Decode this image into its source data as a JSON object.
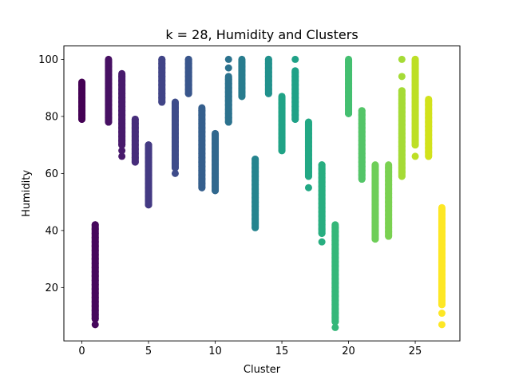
{
  "chart_data": {
    "type": "scatter",
    "title": "k = 28, Humidity and Clusters",
    "xlabel": "Cluster",
    "ylabel": "Humidity",
    "xlim": [
      -1.35,
      28.35
    ],
    "ylim": [
      1.3,
      104.7
    ],
    "xticks": [
      0,
      5,
      10,
      15,
      20,
      25
    ],
    "yticks": [
      20,
      40,
      60,
      80,
      100
    ],
    "grid": false,
    "legend": "none",
    "colormap": "viridis",
    "series": [
      {
        "x": 0,
        "y_min": 79,
        "y_max": 92,
        "outliers": [],
        "color": "#440154"
      },
      {
        "x": 1,
        "y_min": 9,
        "y_max": 42,
        "outliers": [
          7
        ],
        "color": "#46085c"
      },
      {
        "x": 2,
        "y_min": 78,
        "y_max": 100,
        "outliers": [],
        "color": "#471063"
      },
      {
        "x": 3,
        "y_min": 70,
        "y_max": 95,
        "outliers": [
          66,
          68
        ],
        "color": "#481a6c"
      },
      {
        "x": 4,
        "y_min": 64,
        "y_max": 79,
        "outliers": [],
        "color": "#482273"
      },
      {
        "x": 5,
        "y_min": 49,
        "y_max": 70,
        "outliers": [],
        "color": "#472c7a"
      },
      {
        "x": 6,
        "y_min": 85,
        "y_max": 100,
        "outliers": [],
        "color": "#46337f"
      },
      {
        "x": 7,
        "y_min": 62,
        "y_max": 85,
        "outliers": [
          60
        ],
        "color": "#433d84"
      },
      {
        "x": 8,
        "y_min": 88,
        "y_max": 100,
        "outliers": [],
        "color": "#414487"
      },
      {
        "x": 9,
        "y_min": 55,
        "y_max": 83,
        "outliers": [],
        "color": "#3e4c8a"
      },
      {
        "x": 10,
        "y_min": 54,
        "y_max": 74,
        "outliers": [],
        "color": "#3b528b"
      },
      {
        "x": 11,
        "y_min": 78,
        "y_max": 94,
        "outliers": [
          97,
          100
        ],
        "color": "#375b8d"
      },
      {
        "x": 12,
        "y_min": 87,
        "y_max": 100,
        "outliers": [],
        "color": "#34618d"
      },
      {
        "x": 13,
        "y_min": 41,
        "y_max": 65,
        "outliers": [],
        "color": "#30698e"
      },
      {
        "x": 14,
        "y_min": 88,
        "y_max": 100,
        "outliers": [],
        "color": "#2d708e"
      },
      {
        "x": 15,
        "y_min": 68,
        "y_max": 87,
        "outliers": [],
        "color": "#2a788e"
      },
      {
        "x": 16,
        "y_min": 79,
        "y_max": 96,
        "outliers": [
          100
        ],
        "color": "#287d8e"
      },
      {
        "x": 17,
        "y_min": 59,
        "y_max": 78,
        "outliers": [
          55
        ],
        "color": "#25848e"
      },
      {
        "x": 18,
        "y_min": 39,
        "y_max": 63,
        "outliers": [
          36
        ],
        "color": "#228b8d"
      },
      {
        "x": 19,
        "y_min": 8,
        "y_max": 42,
        "outliers": [
          6
        ],
        "color": "#20928c"
      },
      {
        "x": 20,
        "y_min": 81,
        "y_max": 100,
        "outliers": [],
        "color": "#1f988b"
      },
      {
        "x": 21,
        "y_min": 58,
        "y_max": 82,
        "outliers": [],
        "color": "#1fa088"
      },
      {
        "x": 22,
        "y_min": 37,
        "y_max": 63,
        "outliers": [],
        "color": "#22a785"
      },
      {
        "x": 23,
        "y_min": 38,
        "y_max": 63,
        "outliers": [],
        "color": "#28ae80"
      },
      {
        "x": 24,
        "y_min": 59,
        "y_max": 89,
        "outliers": [
          94,
          100
        ],
        "color": "#2fb47c"
      },
      {
        "x": 25,
        "y_min": 70,
        "y_max": 100,
        "outliers": [
          66
        ],
        "color": "#3bbb75"
      },
      {
        "x": 26,
        "y_min": 66,
        "y_max": 86,
        "outliers": [],
        "color": "#48c16e"
      },
      {
        "x": 27,
        "y_min": 14,
        "y_max": 48,
        "outliers": [
          7,
          11
        ],
        "color": "#5ec962"
      }
    ],
    "display_colors": [
      "#440154",
      "#46085c",
      "#471063",
      "#481a6c",
      "#472d7b",
      "#443a83",
      "#414487",
      "#3e4c8a",
      "#39568c",
      "#355f8d",
      "#31688e",
      "#2c728e",
      "#287c8e",
      "#25848e",
      "#21918c",
      "#20a386",
      "#1fa187",
      "#22a884",
      "#28ae80",
      "#35b779",
      "#44bf70",
      "#54c568",
      "#6ece58",
      "#7ad151",
      "#a5db36",
      "#bddf26",
      "#d2e21b",
      "#fde725"
    ]
  }
}
